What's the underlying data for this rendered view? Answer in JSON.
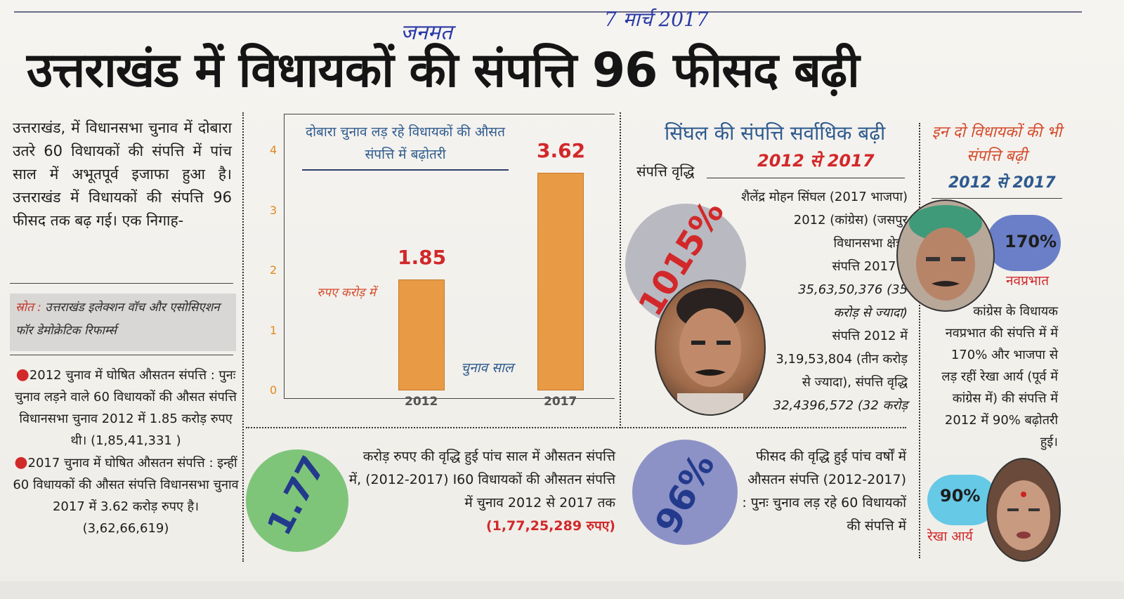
{
  "handwritten": {
    "publication": "जनमत",
    "date": "7 मार्च 2017"
  },
  "headline": "उत्तराखंड में विधायकों की संपत्ति 96 फीसद बढ़ी",
  "intro": {
    "text": "उत्तराखंड, में विधानसभा चुनाव में दोबारा उतरे 60 विधायकों की संपत्ति में पांच साल में अभूतपूर्व इजाफा हुआ है। उत्तराखंड में विधायकों की संपत्ति 96 फीसद तक बढ़ गई। एक निगाह-"
  },
  "source": {
    "label": "स्रोत :",
    "text": "उत्तराखंड इलेक्शन वॉच और एसोसिएशन फॉर डेमोक्रेटिक रिफार्म्स"
  },
  "bullets": [
    "2012 चुनाव में घोषित औसतन संपत्ति : पुनः चुनाव लड़ने वाले 60 विधायकों की औसत संपत्ति विधानसभा चुनाव 2012 में 1.85 करोड़ रुपए थी। (1,85,41,331 )",
    "2017 चुनाव में घोषित औसतन संपत्ति : इन्हीं 60 विधायकों की औसत संपत्ति विधानसभा चुनाव 2017 में 3.62 करोड़ रुपए है। (3,62,66,619)"
  ],
  "chart_data": {
    "type": "bar",
    "title": "दोबारा चुनाव लड़ रहे विधायकों की औसत संपत्ति में बढ़ोतरी",
    "categories": [
      "2012",
      "2017"
    ],
    "values": [
      1.85,
      3.62
    ],
    "value_labels": [
      "1.85",
      "3.62"
    ],
    "ylabel": "रुपए करोड़ में",
    "xlabel": "चुनाव साल",
    "yticks": [
      "0",
      "1",
      "2",
      "3",
      "4"
    ],
    "ylim": [
      0,
      4
    ],
    "bar_color": "#e89a45",
    "label_color": "#d2282a"
  },
  "growth_note": {
    "value": "1.77",
    "text": "करोड़ रुपए की वृद्धि हुई पांच साल में औसतन संपत्ति में, (2012-2017) I60 विधायकों की औसतन संपत्ति में चुनाव 2012 से 2017 तक",
    "amount": "(1,77,25,289 रुपए)"
  },
  "singhal": {
    "title": "सिंघल की संपत्ति सर्वाधिक बढ़ी",
    "years": "2012 से 2017",
    "label": "संपत्ति वृद्धि",
    "percent": "1015%",
    "lines": [
      "शैलेंद्र मोहन सिंघल (2017 भाजपा)",
      "2012 (कांग्रेस) (जसपुर",
      "विधानसभा क्षेत्र)",
      "संपत्ति 2017 में",
      "35,63,50,376 (35",
      "करोड़ से ज्यादा)",
      "संपत्ति 2012 में",
      "3,19,53,804 (तीन करोड़",
      "से ज्यादा), संपत्ति वृद्धि",
      "32,4396,572 (32 करोड़"
    ]
  },
  "percent_note": {
    "value": "96%",
    "text": "फीसद की वृद्धि हुई पांच वर्षों में औसतन संपत्ति (2012-2017) : पुनः चुनाव लड़ रहे 60 विधायकों की संपत्ति में"
  },
  "others": {
    "title": "इन दो विधायकों की भी संपत्ति बढ़ी",
    "years": "2012 से 2017",
    "p1_percent": "170%",
    "p1_name": "नवप्रभात",
    "desc": "कांग्रेस के विधायक नवप्रभात की संपत्ति में में 170% और भाजपा से लड़ रहीं रेखा आर्य (पूर्व में कांग्रेस में) की संपत्ति में 2012 में 90% बढ़ोतरी हुई।",
    "p2_percent": "90%",
    "p2_name": "रेखा आर्य"
  }
}
